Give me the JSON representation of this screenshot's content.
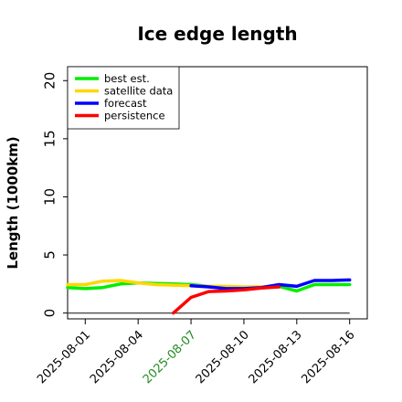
{
  "chart_data": {
    "type": "line",
    "title": "Ice edge length",
    "xlabel": "",
    "ylabel": "Length (1000km)",
    "ylim": [
      -0.5,
      21.2
    ],
    "xlim": [
      "2025-08-00",
      "2025-08-17"
    ],
    "yticks": [
      "0",
      "5",
      "10",
      "15",
      "20"
    ],
    "xticks": [
      "2025-08-01",
      "2025-08-04",
      "2025-08-07",
      "2025-08-10",
      "2025-08-13",
      "2025-08-16"
    ],
    "highlighted_xtick": "2025-08-07",
    "highlight_color": "#228b22",
    "grid": false,
    "legend_position": "top-left",
    "series": [
      {
        "name": "best est.",
        "color": "#00ee00",
        "x": [
          "2025-07-31",
          "2025-08-01",
          "2025-08-02",
          "2025-08-03",
          "2025-08-04",
          "2025-08-05",
          "2025-08-06",
          "2025-08-07",
          "2025-08-08",
          "2025-08-09",
          "2025-08-10",
          "2025-08-11",
          "2025-08-12",
          "2025-08-13",
          "2025-08-14",
          "2025-08-15",
          "2025-08-16"
        ],
        "values": [
          2.2,
          2.1,
          2.2,
          2.5,
          2.6,
          2.55,
          2.5,
          2.45,
          2.3,
          2.2,
          2.1,
          2.2,
          2.3,
          1.9,
          2.45,
          2.45,
          2.45
        ]
      },
      {
        "name": "satellite data",
        "color": "#ffd700",
        "x": [
          "2025-07-31",
          "2025-08-01",
          "2025-08-02",
          "2025-08-03",
          "2025-08-04",
          "2025-08-05",
          "2025-08-06",
          "2025-08-07",
          "2025-08-08",
          "2025-08-09",
          "2025-08-10",
          "2025-08-11",
          "2025-08-12"
        ],
        "values": [
          2.45,
          2.45,
          2.75,
          2.8,
          2.6,
          2.45,
          2.4,
          2.35,
          2.3,
          2.3,
          2.25,
          2.25,
          2.25
        ]
      },
      {
        "name": "forecast",
        "color": "#0000ff",
        "x": [
          "2025-08-07",
          "2025-08-08",
          "2025-08-09",
          "2025-08-10",
          "2025-08-11",
          "2025-08-12",
          "2025-08-13",
          "2025-08-14",
          "2025-08-15",
          "2025-08-16"
        ],
        "values": [
          2.35,
          2.25,
          2.1,
          2.1,
          2.2,
          2.45,
          2.3,
          2.8,
          2.8,
          2.85
        ]
      },
      {
        "name": "persistence",
        "color": "#ff0000",
        "x": [
          "2025-08-06",
          "2025-08-07",
          "2025-08-08",
          "2025-08-09",
          "2025-08-10",
          "2025-08-11",
          "2025-08-12"
        ],
        "values": [
          0.0,
          1.35,
          1.85,
          1.9,
          2.0,
          2.15,
          2.25
        ]
      }
    ],
    "reference_line": {
      "y": 0,
      "color": "#555555",
      "x": [
        "2025-07-31",
        "2025-08-16"
      ]
    }
  }
}
